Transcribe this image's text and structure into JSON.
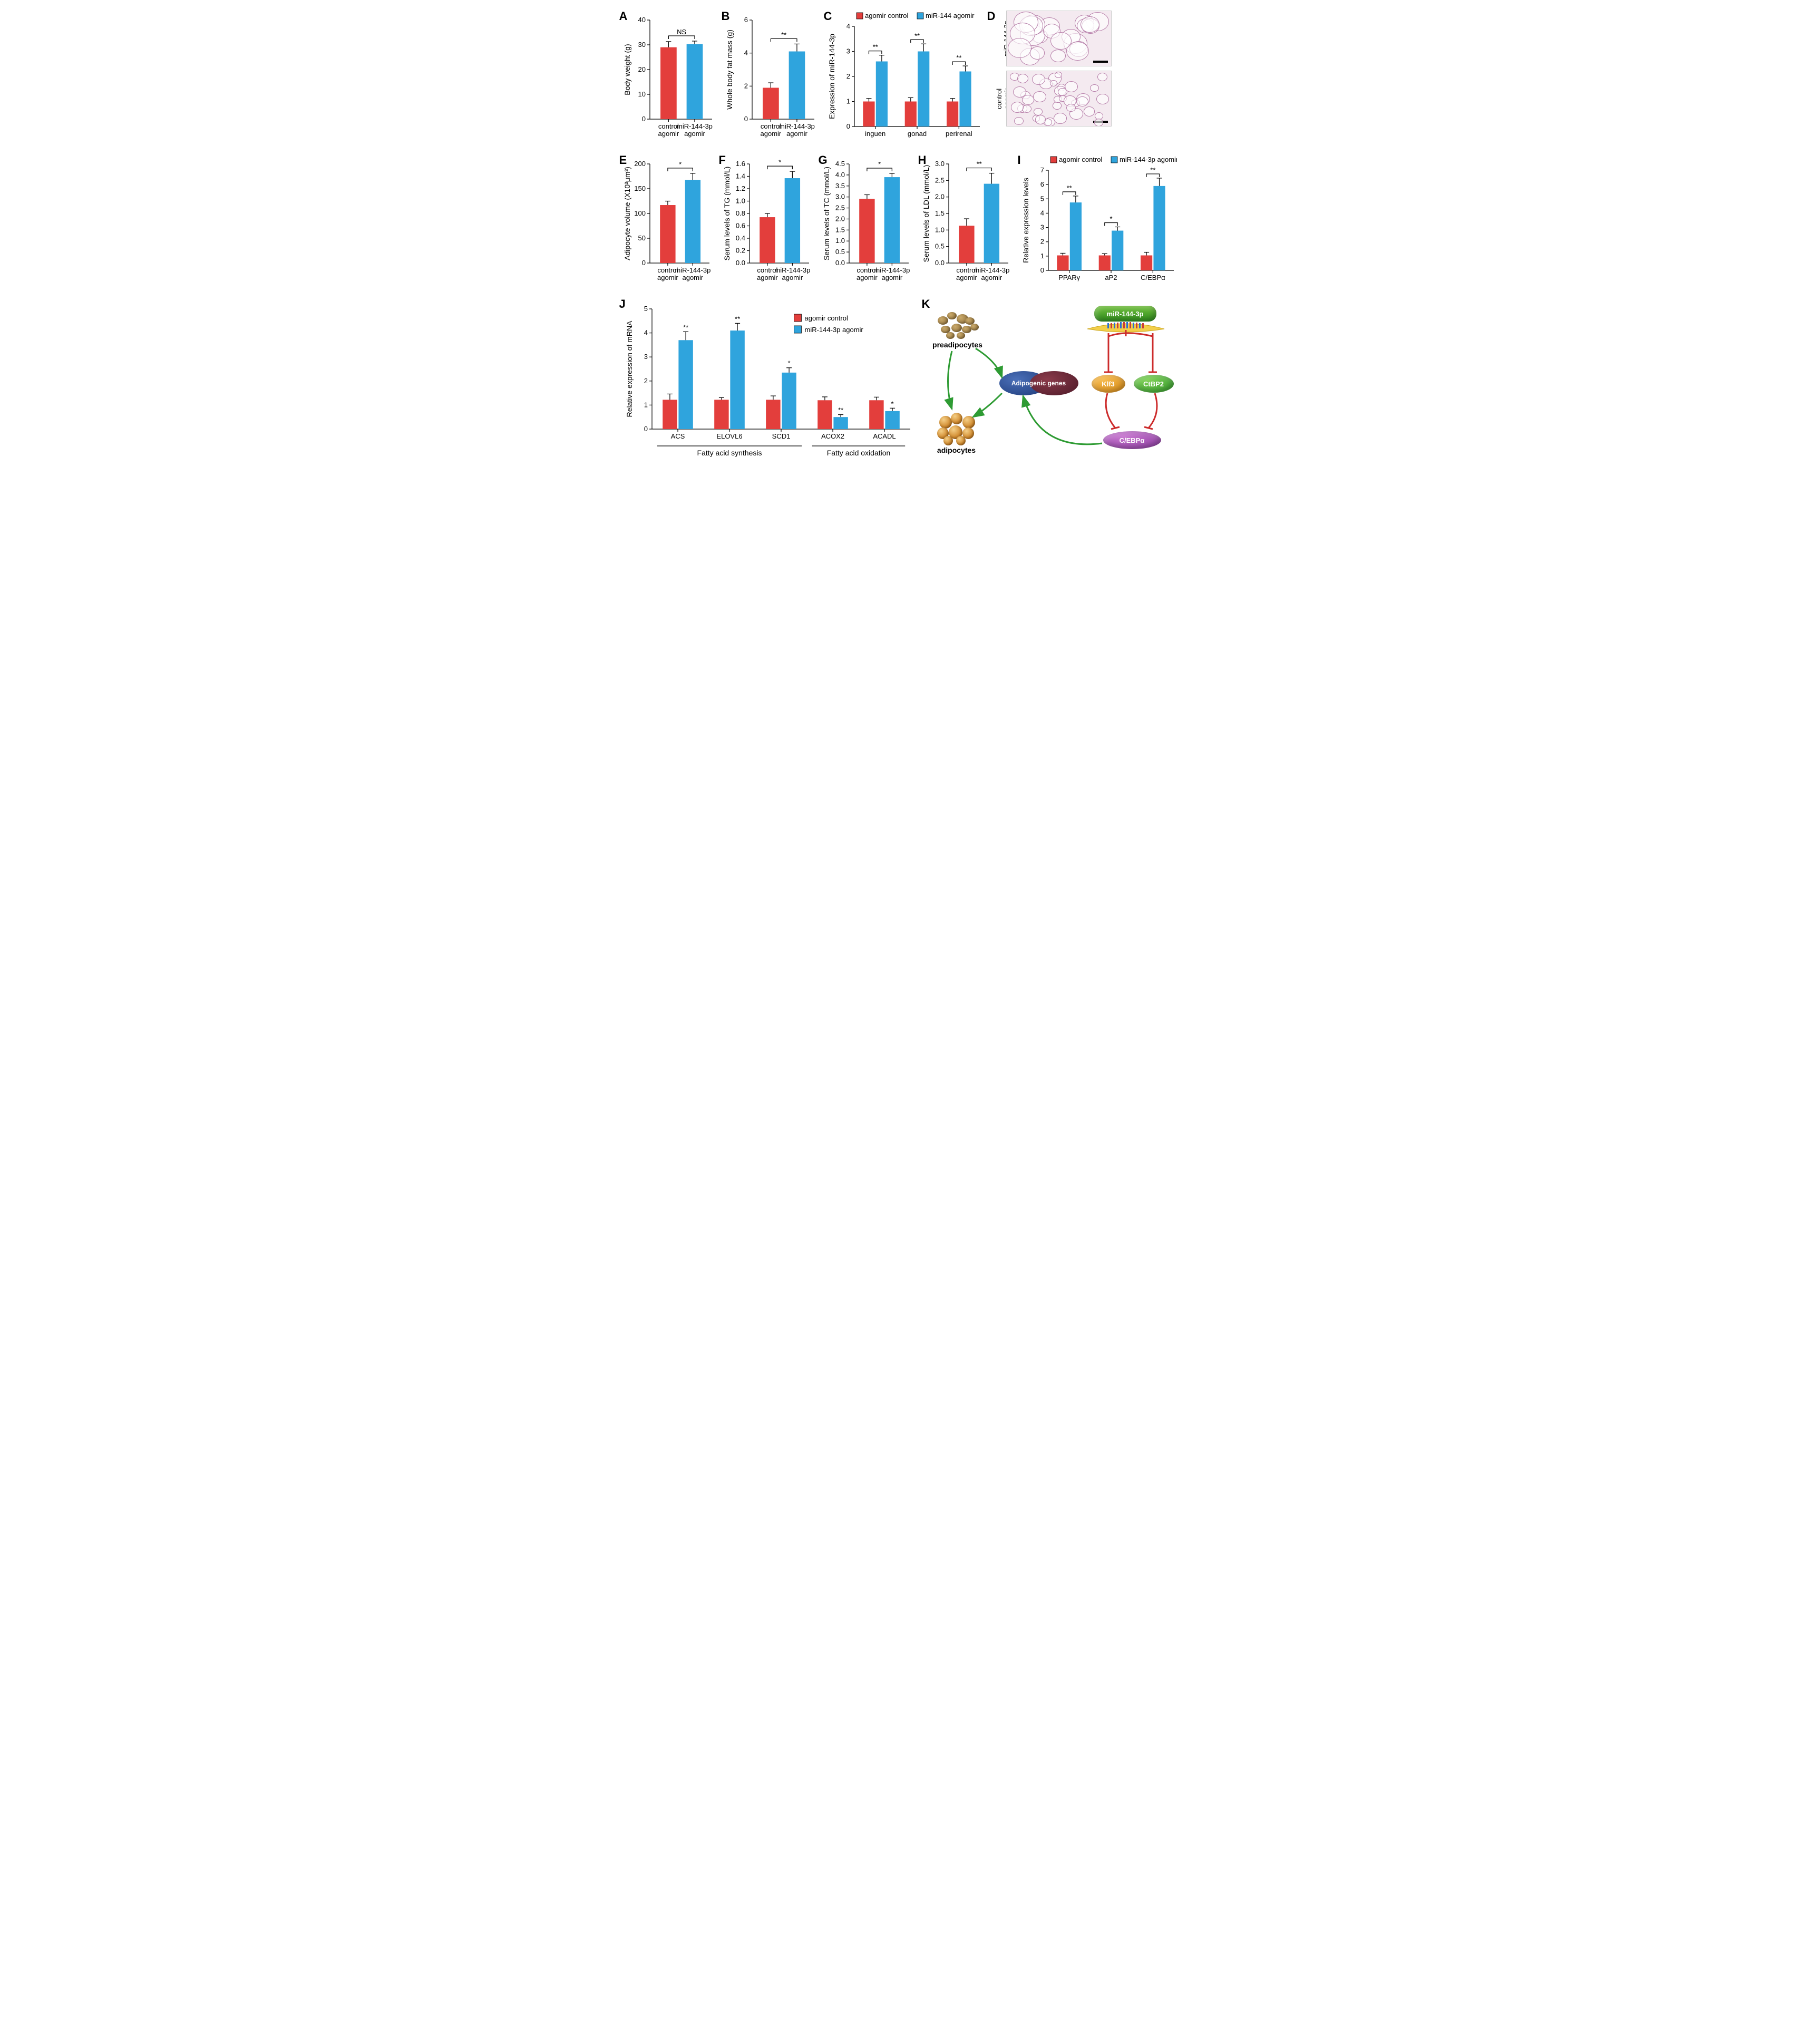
{
  "colors": {
    "red": "#e33e3c",
    "blue": "#2fa4dd",
    "green": "#2e9b33",
    "inhibit": "#cc2b2b"
  },
  "font": {
    "family": "Arial",
    "axis_pt": 13,
    "label_pt": 14,
    "panel_pt": 22
  },
  "x_labels_two": [
    "control\nagomir",
    "miR-144-3p\nagomir"
  ],
  "legend_ac": {
    "ctrl": "agomir control",
    "mir": "miR-144 agomir"
  },
  "legend_ij": {
    "ctrl": "agomir control",
    "mir": "miR-144-3p agomir"
  },
  "A": {
    "panel": "A",
    "ylabel": "Body weight (g)",
    "ylim": [
      0,
      40
    ],
    "ytick_step": 10,
    "bars": [
      {
        "label": "control\nagomir",
        "value": 29,
        "err": 2.3,
        "color": "red"
      },
      {
        "label": "miR-144-3p\nagomir",
        "value": 30.3,
        "err": 1.2,
        "color": "blue"
      }
    ],
    "sig": "NS"
  },
  "B": {
    "panel": "B",
    "ylabel": "Whole body fat mass (g)",
    "ylim": [
      0,
      6
    ],
    "ytick_step": 2,
    "bars": [
      {
        "label": "control\nagomir",
        "value": 1.9,
        "err": 0.3,
        "color": "red"
      },
      {
        "label": "miR-144-3p\nagomir",
        "value": 4.1,
        "err": 0.45,
        "color": "blue"
      }
    ],
    "sig": "**"
  },
  "C": {
    "panel": "C",
    "ylabel": "Expression of miR-144-3p",
    "ylim": [
      0,
      4
    ],
    "ytick_step": 1,
    "categories": [
      "inguen",
      "gonad",
      "perirenal"
    ],
    "pairs": [
      {
        "ctrl": 1.0,
        "ctrl_err": 0.12,
        "mir": 2.6,
        "mir_err": 0.25,
        "sig": "**"
      },
      {
        "ctrl": 1.0,
        "ctrl_err": 0.15,
        "mir": 3.0,
        "mir_err": 0.3,
        "sig": "**"
      },
      {
        "ctrl": 1.0,
        "ctrl_err": 0.12,
        "mir": 2.2,
        "mir_err": 0.22,
        "sig": "**"
      }
    ]
  },
  "D": {
    "panel": "D",
    "top_caption": "miR-144-3p\nagomir",
    "bottom_caption": "control\nagomir"
  },
  "E": {
    "panel": "E",
    "ylabel": "Adipocyte volume (X10³μm³)",
    "ylim": [
      0,
      200
    ],
    "ytick_step": 50,
    "bars": [
      {
        "label": "control\nagomir",
        "value": 117,
        "err": 8,
        "color": "red"
      },
      {
        "label": "miR-144-3p\nagomir",
        "value": 168,
        "err": 13,
        "color": "blue"
      }
    ],
    "sig": "*"
  },
  "F": {
    "panel": "F",
    "ylabel": "Serum levels of TG (mmol/L)",
    "ylim": [
      0,
      1.6
    ],
    "ytick_step": 0.2,
    "bars": [
      {
        "label": "control\nagomir",
        "value": 0.74,
        "err": 0.06,
        "color": "red"
      },
      {
        "label": "miR-144-3p\nagomir",
        "value": 1.37,
        "err": 0.11,
        "color": "blue"
      }
    ],
    "sig": "*"
  },
  "G": {
    "panel": "G",
    "ylabel": "Serum levels of TC (mmol/L)",
    "ylim": [
      0,
      4.5
    ],
    "ytick_step": 0.5,
    "bars": [
      {
        "label": "control\nagomir",
        "value": 2.92,
        "err": 0.18,
        "color": "red"
      },
      {
        "label": "miR-144-3p\nagomir",
        "value": 3.9,
        "err": 0.17,
        "color": "blue"
      }
    ],
    "sig": "*"
  },
  "H": {
    "panel": "H",
    "ylabel": "Serum levels of LDL (mmol/L)",
    "ylim": [
      0,
      3.0
    ],
    "ytick_step": 0.5,
    "bars": [
      {
        "label": "control\nagomir",
        "value": 1.13,
        "err": 0.21,
        "color": "red"
      },
      {
        "label": "miR-144-3p\nagomir",
        "value": 2.4,
        "err": 0.32,
        "color": "blue"
      }
    ],
    "sig": "**"
  },
  "I": {
    "panel": "I",
    "ylabel": "Relative expression levels",
    "ylim": [
      0,
      7
    ],
    "ytick_step": 1,
    "categories": [
      "PPARγ",
      "aP2",
      "C/EBPα"
    ],
    "pairs": [
      {
        "ctrl": 1.05,
        "ctrl_err": 0.15,
        "mir": 4.75,
        "mir_err": 0.45,
        "sig": "**"
      },
      {
        "ctrl": 1.05,
        "ctrl_err": 0.12,
        "mir": 2.78,
        "mir_err": 0.26,
        "sig": "*"
      },
      {
        "ctrl": 1.05,
        "ctrl_err": 0.22,
        "mir": 5.9,
        "mir_err": 0.55,
        "sig": "**"
      }
    ]
  },
  "J": {
    "panel": "J",
    "ylabel": "Relative expression of mRNA",
    "ylim": [
      0,
      5
    ],
    "ytick_step": 1,
    "categories": [
      "ACS",
      "ELOVL6",
      "SCD1",
      "ACOX2",
      "ACADL"
    ],
    "groups": [
      {
        "label": "Fatty acid synthesis",
        "span": [
          0,
          2
        ]
      },
      {
        "label": "Fatty acid oxidation",
        "span": [
          3,
          4
        ]
      }
    ],
    "pairs": [
      {
        "ctrl": 1.22,
        "ctrl_err": 0.24,
        "mir": 3.7,
        "mir_err": 0.35,
        "sig": "**"
      },
      {
        "ctrl": 1.22,
        "ctrl_err": 0.09,
        "mir": 4.1,
        "mir_err": 0.3,
        "sig": "**"
      },
      {
        "ctrl": 1.22,
        "ctrl_err": 0.16,
        "mir": 2.35,
        "mir_err": 0.2,
        "sig": "*"
      },
      {
        "ctrl": 1.2,
        "ctrl_err": 0.14,
        "mir": 0.5,
        "mir_err": 0.1,
        "sig": "**"
      },
      {
        "ctrl": 1.2,
        "ctrl_err": 0.13,
        "mir": 0.75,
        "mir_err": 0.12,
        "sig": "*"
      }
    ]
  },
  "K": {
    "panel": "K",
    "labels": {
      "preadip": "preadipocytes",
      "adip": "adipocytes",
      "adipo_genes": "Adipogenic genes",
      "mir": "miR-144-3p",
      "klf3": "Klf3",
      "ctbp2": "CtBP2",
      "cebpa": "C/EBPα"
    }
  }
}
